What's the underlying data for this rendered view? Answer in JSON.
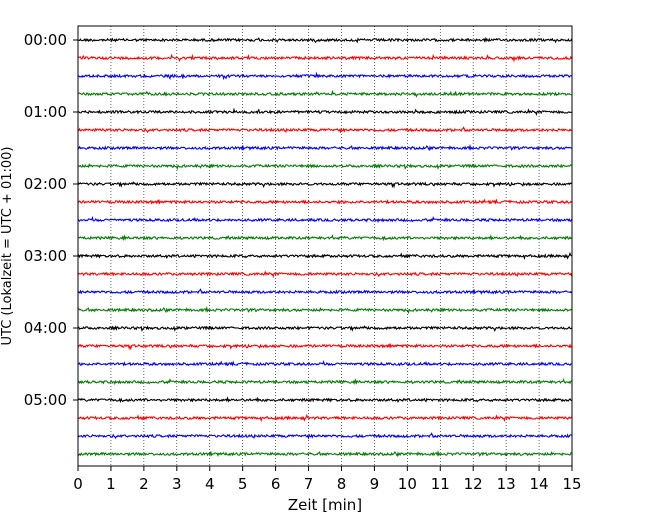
{
  "chart_data": {
    "type": "line",
    "title": "",
    "xlabel": "Zeit  [min]",
    "ylabel": "UTC (Lokalzeit = UTC + 01:00)",
    "xlim": [
      0,
      15
    ],
    "x_ticks": [
      "0",
      "1",
      "2",
      "3",
      "4",
      "5",
      "6",
      "7",
      "8",
      "9",
      "10",
      "11",
      "12",
      "13",
      "14",
      "15"
    ],
    "y_ticks": [
      "00:00",
      "01:00",
      "02:00",
      "03:00",
      "04:00",
      "05:00"
    ],
    "grid": "vertical dotted lines at each minute",
    "trace_interval_minutes": 15,
    "trace_count": 24,
    "first_trace": "00:00",
    "trace_colors": [
      "#000000",
      "#ff0000",
      "#0000ff",
      "#008000"
    ],
    "traces": [
      {
        "start": "00:00"
      },
      {
        "start": "00:15"
      },
      {
        "start": "00:30"
      },
      {
        "start": "00:45"
      },
      {
        "start": "01:00"
      },
      {
        "start": "01:15"
      },
      {
        "start": "01:30"
      },
      {
        "start": "01:45"
      },
      {
        "start": "02:00"
      },
      {
        "start": "02:15"
      },
      {
        "start": "02:30"
      },
      {
        "start": "02:45"
      },
      {
        "start": "03:00"
      },
      {
        "start": "03:15"
      },
      {
        "start": "03:30"
      },
      {
        "start": "03:45"
      },
      {
        "start": "04:00"
      },
      {
        "start": "04:15"
      },
      {
        "start": "04:30"
      },
      {
        "start": "04:45"
      },
      {
        "start": "05:00"
      },
      {
        "start": "05:15"
      },
      {
        "start": "05:30"
      },
      {
        "start": "05:45"
      }
    ]
  }
}
